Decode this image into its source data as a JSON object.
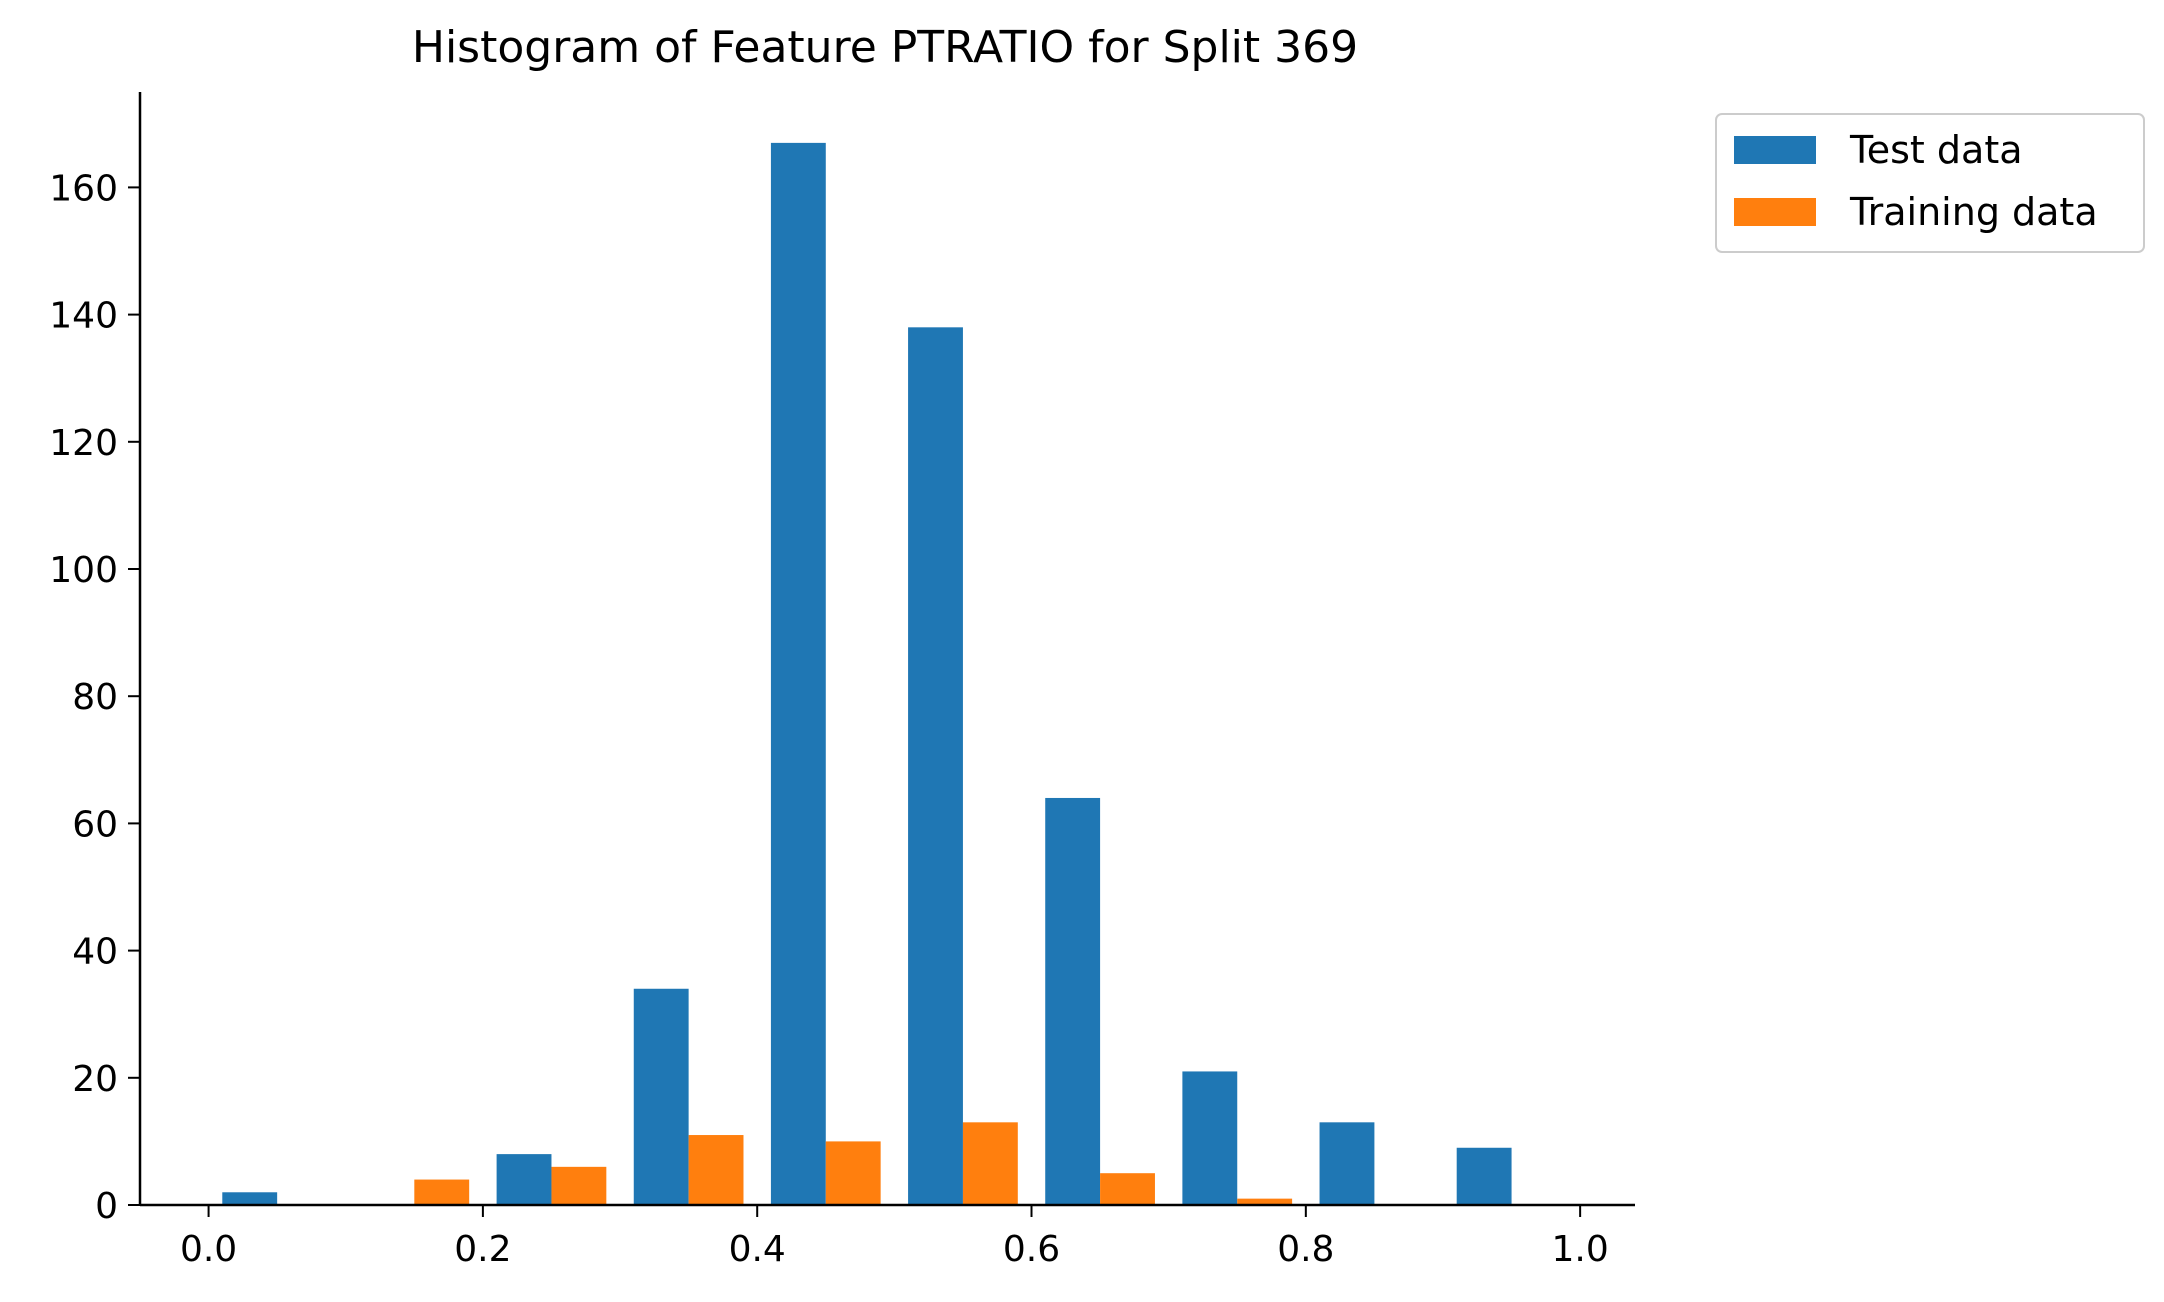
{
  "chart_data": {
    "type": "bar",
    "title": "Histogram of Feature PTRATIO for Split 369",
    "xlabel": "",
    "ylabel": "",
    "bin_edges": [
      0.0,
      0.1,
      0.2,
      0.3,
      0.4,
      0.5,
      0.6,
      0.7,
      0.8,
      0.9,
      1.0
    ],
    "xlim": [
      -0.05,
      1.04
    ],
    "ylim": [
      0,
      175
    ],
    "xticks": [
      "0.0",
      "0.2",
      "0.4",
      "0.6",
      "0.8",
      "1.0"
    ],
    "yticks": [
      "0",
      "20",
      "40",
      "60",
      "80",
      "100",
      "120",
      "140",
      "160"
    ],
    "legend_position": "outside top-right",
    "grid": false,
    "series": [
      {
        "name": "Test data",
        "color": "#1f77b4",
        "values": [
          2,
          0,
          8,
          34,
          167,
          138,
          64,
          21,
          13,
          9
        ]
      },
      {
        "name": "Training data",
        "color": "#ff7f0e",
        "values": [
          0,
          4,
          6,
          11,
          10,
          13,
          5,
          1,
          0,
          0
        ]
      }
    ]
  }
}
